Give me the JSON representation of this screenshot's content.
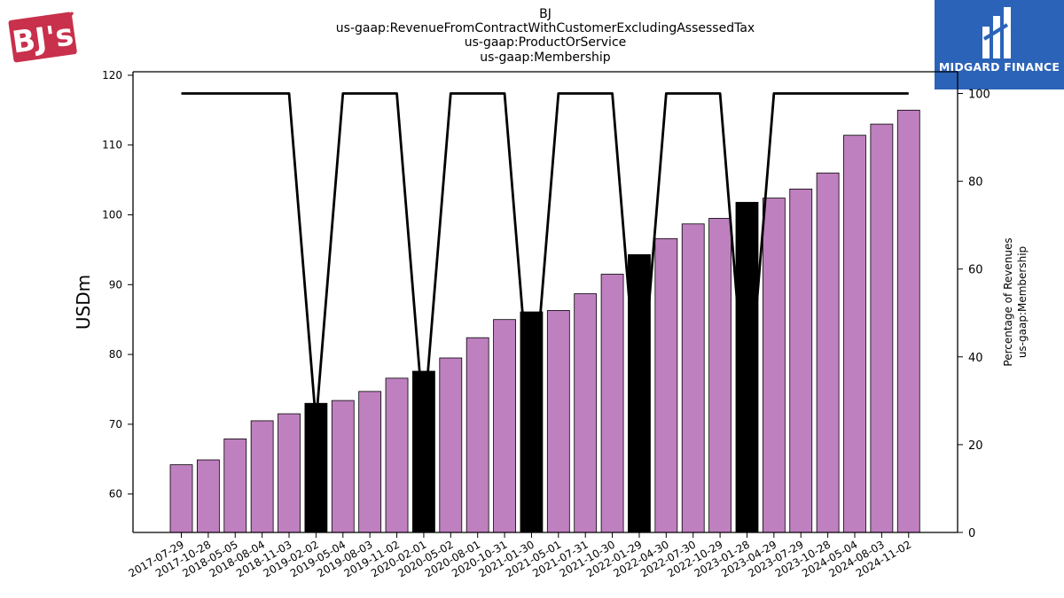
{
  "header": {
    "ticker": "BJ",
    "concept": "us-gaap:RevenueFromContractWithCustomerExcludingAssessedTax",
    "axis_member": "us-gaap:ProductOrService",
    "member": "us-gaap:Membership"
  },
  "logos": {
    "left_brand": "BJ's",
    "right_brand": "MIDGARD FINANCE"
  },
  "colors": {
    "bar": "#bf80bf",
    "bar_highlight": "#000000",
    "line": "#000000",
    "brand_red": "#c8304b",
    "brand_blue": "#2b63b8"
  },
  "chart_data": {
    "type": "bar",
    "categories": [
      "2017-07-29",
      "2017-10-28",
      "2018-05-05",
      "2018-08-04",
      "2018-11-03",
      "2019-02-02",
      "2019-05-04",
      "2019-08-03",
      "2019-11-02",
      "2020-02-01",
      "2020-05-02",
      "2020-08-01",
      "2020-10-31",
      "2021-01-30",
      "2021-05-01",
      "2021-07-31",
      "2021-10-30",
      "2022-01-29",
      "2022-04-30",
      "2022-07-30",
      "2022-10-29",
      "2023-01-28",
      "2023-04-29",
      "2023-07-29",
      "2023-10-28",
      "2024-05-04",
      "2024-08-03",
      "2024-11-02"
    ],
    "values": [
      64.2,
      64.9,
      67.9,
      70.5,
      71.5,
      73.0,
      73.4,
      74.7,
      76.6,
      77.6,
      79.5,
      82.4,
      85.0,
      86.1,
      86.3,
      88.7,
      91.5,
      94.3,
      96.6,
      98.7,
      99.5,
      101.8,
      102.4,
      103.7,
      106.0,
      111.4,
      113.0,
      115.0
    ],
    "highlight_categories": [
      "2019-02-02",
      "2020-02-01",
      "2021-01-30",
      "2022-01-29",
      "2023-01-28"
    ],
    "series": [
      {
        "values": [
          64.2,
          64.9,
          67.9,
          70.5,
          71.5,
          73.0,
          73.4,
          74.7,
          76.6,
          77.6,
          79.5,
          82.4,
          85.0,
          86.1,
          86.3,
          88.7,
          91.5,
          94.3,
          96.6,
          98.7,
          99.5,
          101.8,
          102.4,
          103.7,
          106.0,
          111.4,
          113.0,
          115.0
        ]
      },
      {
        "axis": "right",
        "type": "line",
        "values": [
          100,
          100,
          100,
          100,
          100,
          25,
          100,
          100,
          100,
          25,
          100,
          100,
          100,
          25,
          100,
          100,
          100,
          25,
          100,
          100,
          100,
          25,
          100,
          100,
          100,
          100,
          100,
          100
        ]
      }
    ],
    "ylabel": "USDm",
    "y2label_line1": "Percentage of Revenues",
    "y2label_line2": "us-gaap:Membership",
    "ylim": [
      54.5,
      120.5
    ],
    "y2lim": [
      0,
      100
    ],
    "yticks": [
      60,
      70,
      80,
      90,
      100,
      110,
      120
    ],
    "y2ticks": [
      0,
      20,
      40,
      60,
      80,
      100
    ],
    "grid": false
  }
}
